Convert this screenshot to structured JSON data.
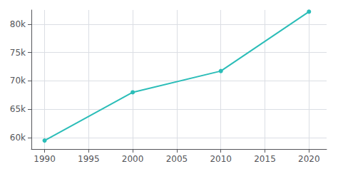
{
  "chart_data": {
    "type": "line",
    "x": [
      1990,
      2000,
      2010,
      2020
    ],
    "values": [
      59495,
      68000,
      71741,
      82200
    ],
    "color": "#2bbdb8",
    "marker": "circle",
    "xlim": [
      1988.5,
      2022
    ],
    "ylim": [
      58000,
      82500
    ],
    "xticks": [
      1990,
      1995,
      2000,
      2005,
      2010,
      2015,
      2020
    ],
    "yticks": [
      {
        "value": 60000,
        "label": "60k"
      },
      {
        "value": 65000,
        "label": "65k"
      },
      {
        "value": 70000,
        "label": "70k"
      },
      {
        "value": 75000,
        "label": "75k"
      },
      {
        "value": 80000,
        "label": "80k"
      }
    ],
    "grid": true
  }
}
